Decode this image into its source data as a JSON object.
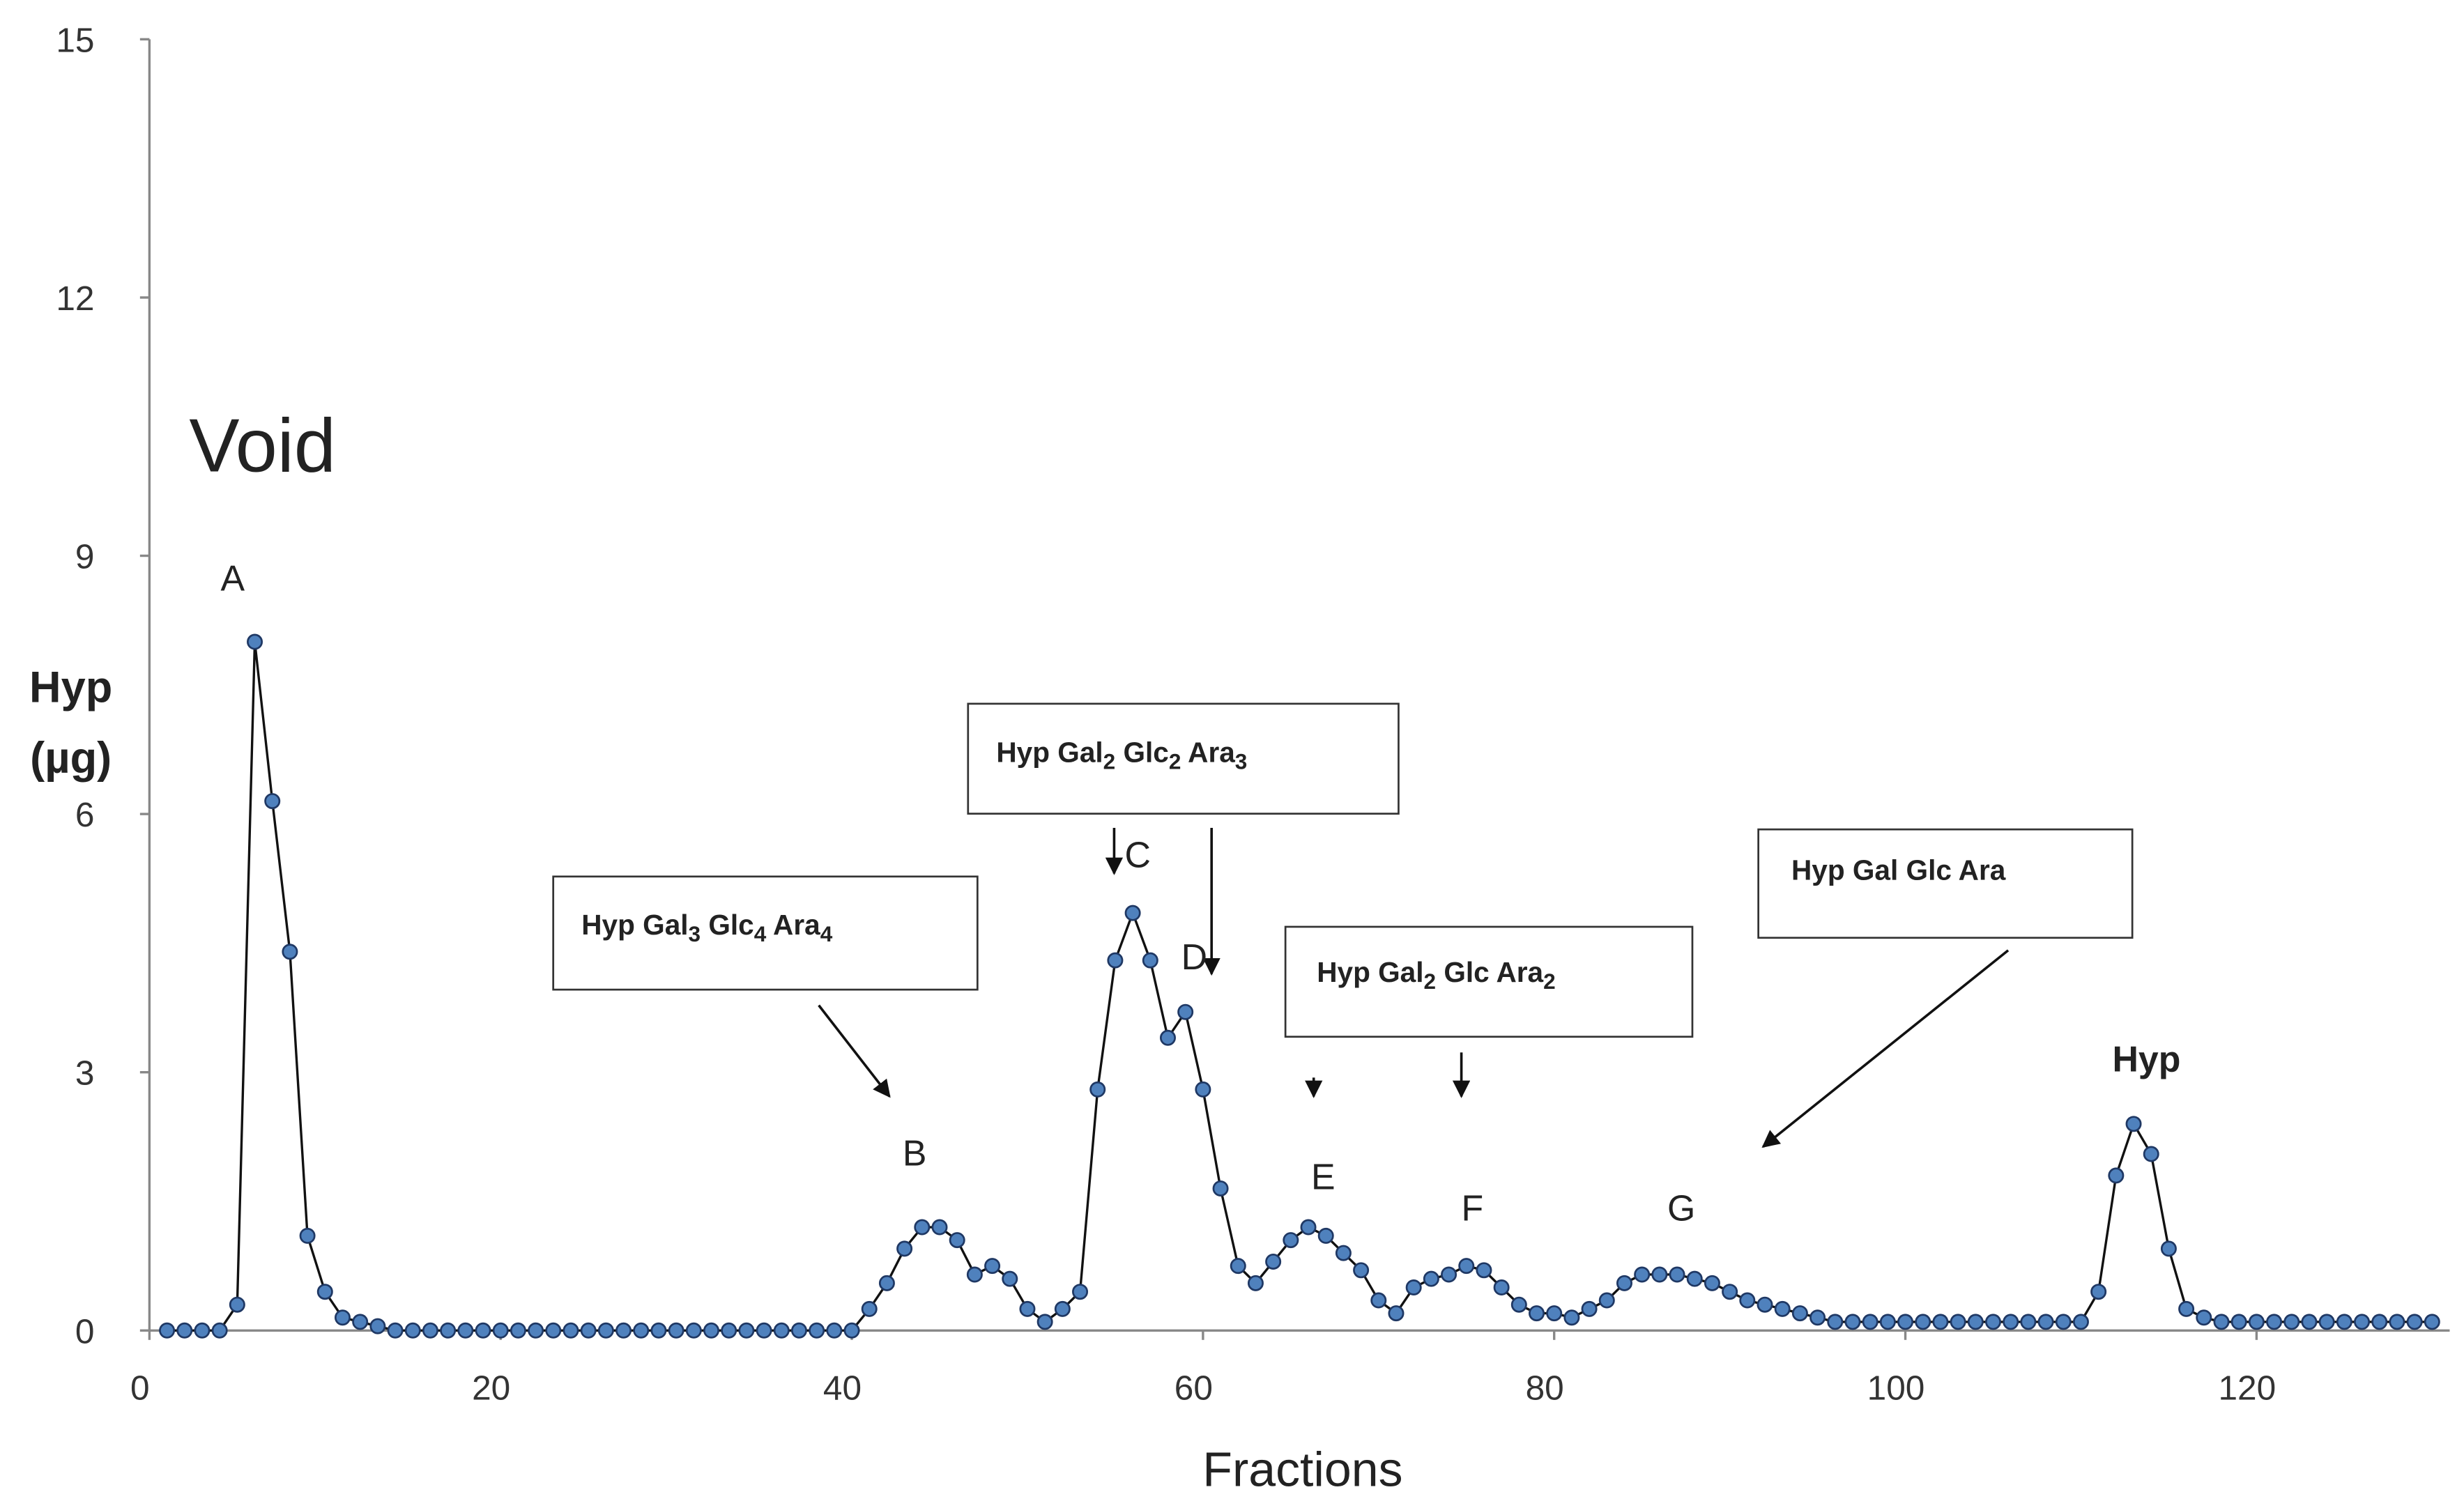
{
  "chart_data": {
    "type": "line",
    "x_label": "Fractions",
    "y_label": [
      "Hyp",
      "(µg)"
    ],
    "xlim": [
      0,
      131
    ],
    "ylim": [
      0,
      15
    ],
    "xticks": [
      0,
      20,
      40,
      60,
      80,
      100,
      120
    ],
    "yticks": [
      0,
      3,
      6,
      9,
      12,
      15
    ],
    "grid": false,
    "x": [
      1,
      2,
      3,
      4,
      5,
      6,
      7,
      8,
      9,
      10,
      11,
      12,
      13,
      14,
      15,
      16,
      17,
      18,
      19,
      20,
      21,
      22,
      23,
      24,
      25,
      26,
      27,
      28,
      29,
      30,
      31,
      32,
      33,
      34,
      35,
      36,
      37,
      38,
      39,
      40,
      41,
      42,
      43,
      44,
      45,
      46,
      47,
      48,
      49,
      50,
      51,
      52,
      53,
      54,
      55,
      56,
      57,
      58,
      59,
      60,
      61,
      62,
      63,
      64,
      65,
      66,
      67,
      68,
      69,
      70,
      71,
      72,
      73,
      74,
      75,
      76,
      77,
      78,
      79,
      80,
      81,
      82,
      83,
      84,
      85,
      86,
      87,
      88,
      89,
      90,
      91,
      92,
      93,
      94,
      95,
      96,
      97,
      98,
      99,
      100,
      101,
      102,
      103,
      104,
      105,
      106,
      107,
      108,
      109,
      110,
      111,
      112,
      113,
      114,
      115,
      116,
      117,
      118,
      119,
      120,
      121,
      122,
      123,
      124,
      125,
      126,
      127,
      128,
      129,
      130
    ],
    "series": [
      {
        "color": "#4f81bd",
        "values": [
          0,
          0,
          0,
          0,
          0.3,
          8.0,
          6.15,
          4.4,
          1.1,
          0.45,
          0.15,
          0.1,
          0.05,
          0,
          0,
          0,
          0,
          0,
          0,
          0,
          0,
          0,
          0,
          0,
          0,
          0,
          0,
          0,
          0,
          0,
          0,
          0,
          0,
          0,
          0,
          0,
          0,
          0,
          0,
          0,
          0.25,
          0.55,
          0.95,
          1.2,
          1.2,
          1.05,
          0.65,
          0.75,
          0.6,
          0.25,
          0.1,
          0.25,
          0.45,
          2.8,
          4.3,
          4.85,
          4.3,
          3.4,
          3.7,
          2.8,
          1.65,
          0.75,
          0.55,
          0.8,
          1.05,
          1.2,
          1.1,
          0.9,
          0.7,
          0.35,
          0.2,
          0.5,
          0.6,
          0.65,
          0.75,
          0.7,
          0.5,
          0.3,
          0.2,
          0.2,
          0.15,
          0.25,
          0.35,
          0.55,
          0.65,
          0.65,
          0.65,
          0.6,
          0.55,
          0.45,
          0.35,
          0.3,
          0.25,
          0.2,
          0.15,
          0.1,
          0.1,
          0.1,
          0.1,
          0.1,
          0.1,
          0.1,
          0.1,
          0.1,
          0.1,
          0.1,
          0.1,
          0.1,
          0.1,
          0.1,
          0.45,
          1.8,
          2.4,
          2.05,
          0.95,
          0.25,
          0.15,
          0.1,
          0.1,
          0.1,
          0.1,
          0.1,
          0.1,
          0.1,
          0.1,
          0.1,
          0.1,
          0.1,
          0.1,
          0.1
        ]
      }
    ],
    "annotations": [
      "Void",
      "A",
      "B",
      "C",
      "D",
      "E",
      "F",
      "G",
      "Hyp"
    ],
    "box_labels": [
      [
        "Hyp Gal",
        "3",
        " Glc",
        "4",
        " Ara",
        "4"
      ],
      [
        "Hyp Gal",
        "2",
        " Glc",
        "2",
        " Ara",
        "3"
      ],
      [
        "Hyp Gal",
        "2",
        " Glc Ara",
        "2"
      ],
      [
        "Hyp Gal Glc Ara"
      ]
    ]
  }
}
